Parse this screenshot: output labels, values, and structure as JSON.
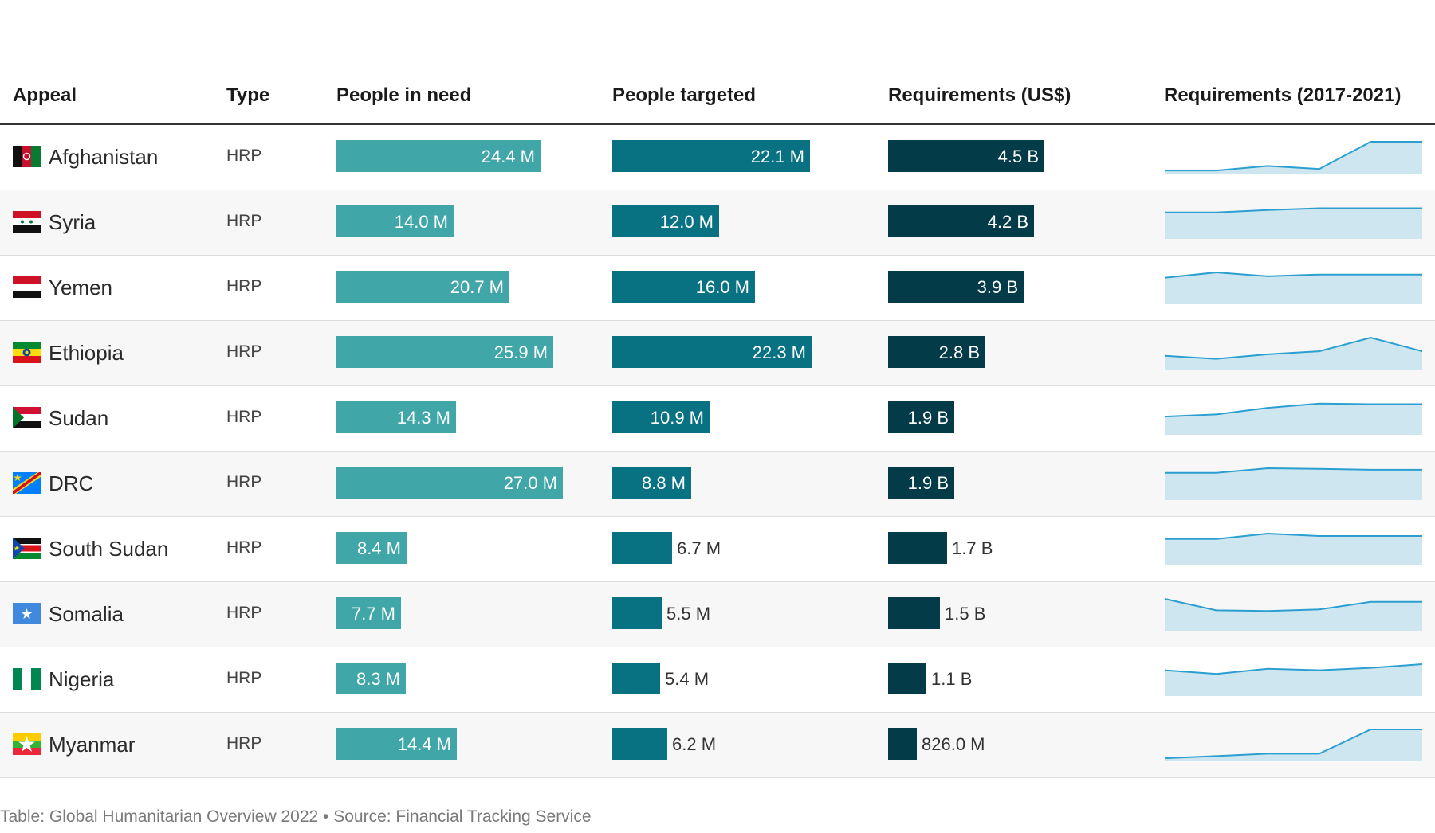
{
  "headers": {
    "appeal": "Appeal",
    "type": "Type",
    "pin": "People in need",
    "targeted": "People targeted",
    "req": "Requirements (US$)",
    "trend": "Requirements (2017-2021)"
  },
  "colors": {
    "pin": "#40a6a8",
    "targeted": "#087283",
    "req": "#033b48",
    "spark_line": "#2c9fd0",
    "spark_fill": "#cde6f0"
  },
  "rows": [
    {
      "appeal": "Afghanistan",
      "flag_icon": "afghanistan-flag-icon",
      "type": "HRP",
      "pin": 24.4,
      "pin_label": "24.4 M",
      "targeted": 22.1,
      "targeted_label": "22.1 M",
      "req": 4.5,
      "req_label": "4.5 B",
      "trend": [
        0.05,
        0.05,
        0.2,
        0.1,
        1.0,
        1.0
      ]
    },
    {
      "appeal": "Syria",
      "flag_icon": "syria-flag-icon",
      "type": "HRP",
      "pin": 14.0,
      "pin_label": "14.0 M",
      "targeted": 12.0,
      "targeted_label": "12.0 M",
      "req": 4.2,
      "req_label": "4.2 B",
      "trend": [
        0.82,
        0.82,
        0.9,
        0.96,
        0.96,
        0.96
      ]
    },
    {
      "appeal": "Yemen",
      "flag_icon": "yemen-flag-icon",
      "type": "HRP",
      "pin": 20.7,
      "pin_label": "20.7 M",
      "targeted": 16.0,
      "targeted_label": "16.0 M",
      "req": 3.9,
      "req_label": "3.9 B",
      "trend": [
        0.82,
        1.0,
        0.87,
        0.93,
        0.93,
        0.93
      ]
    },
    {
      "appeal": "Ethiopia",
      "flag_icon": "ethiopia-flag-icon",
      "type": "HRP",
      "pin": 25.9,
      "pin_label": "25.9 M",
      "targeted": 22.3,
      "targeted_label": "22.3 M",
      "req": 2.8,
      "req_label": "2.8 B",
      "trend": [
        0.4,
        0.3,
        0.45,
        0.55,
        1.0,
        0.55
      ]
    },
    {
      "appeal": "Sudan",
      "flag_icon": "sudan-flag-icon",
      "type": "HRP",
      "pin": 14.3,
      "pin_label": "14.3 M",
      "targeted": 10.9,
      "targeted_label": "10.9 M",
      "req": 1.9,
      "req_label": "1.9 B",
      "trend": [
        0.55,
        0.62,
        0.84,
        0.98,
        0.96,
        0.96
      ]
    },
    {
      "appeal": "DRC",
      "flag_icon": "drc-flag-icon",
      "type": "HRP",
      "pin": 27.0,
      "pin_label": "27.0 M",
      "targeted": 8.8,
      "targeted_label": "8.8 M",
      "req": 1.9,
      "req_label": "1.9 B",
      "trend": [
        0.85,
        0.85,
        1.0,
        0.98,
        0.95,
        0.95
      ]
    },
    {
      "appeal": "South Sudan",
      "flag_icon": "south-sudan-flag-icon",
      "type": "HRP",
      "pin": 8.4,
      "pin_label": "8.4 M",
      "targeted": 6.7,
      "targeted_label": "6.7 M",
      "req": 1.7,
      "req_label": "1.7 B",
      "trend": [
        0.82,
        0.82,
        1.0,
        0.92,
        0.92,
        0.92
      ]
    },
    {
      "appeal": "Somalia",
      "flag_icon": "somalia-flag-icon",
      "type": "HRP",
      "pin": 7.7,
      "pin_label": "7.7 M",
      "targeted": 5.5,
      "targeted_label": "5.5 M",
      "req": 1.5,
      "req_label": "1.5 B",
      "trend": [
        1.0,
        0.62,
        0.6,
        0.65,
        0.9,
        0.9
      ]
    },
    {
      "appeal": "Nigeria",
      "flag_icon": "nigeria-flag-icon",
      "type": "HRP",
      "pin": 8.3,
      "pin_label": "8.3 M",
      "targeted": 5.4,
      "targeted_label": "5.4 M",
      "req": 1.1,
      "req_label": "1.1 B",
      "trend": [
        0.8,
        0.68,
        0.85,
        0.8,
        0.88,
        1.0
      ]
    },
    {
      "appeal": "Myanmar",
      "flag_icon": "myanmar-flag-icon",
      "type": "HRP",
      "pin": 14.4,
      "pin_label": "14.4 M",
      "targeted": 6.2,
      "targeted_label": "6.2 M",
      "req": 0.826,
      "req_label": "826.0 M",
      "trend": [
        0.05,
        0.12,
        0.2,
        0.2,
        1.0,
        1.0
      ]
    }
  ],
  "footnote": "Table: Global Humanitarian Overview 2022 • Source: Financial Tracking Service",
  "chart_data": {
    "type": "table",
    "columns": [
      "Appeal",
      "Type",
      "People in need",
      "People targeted",
      "Requirements (US$)",
      "Requirements (2017-2021)"
    ],
    "units": {
      "People in need": "M",
      "People targeted": "M",
      "Requirements (US$)": "B"
    },
    "categories": [
      "Afghanistan",
      "Syria",
      "Yemen",
      "Ethiopia",
      "Sudan",
      "DRC",
      "South Sudan",
      "Somalia",
      "Nigeria",
      "Myanmar"
    ],
    "series": [
      {
        "name": "People in need",
        "values": [
          24.4,
          14.0,
          20.7,
          25.9,
          14.3,
          27.0,
          8.4,
          7.7,
          8.3,
          14.4
        ]
      },
      {
        "name": "People targeted",
        "values": [
          22.1,
          12.0,
          16.0,
          22.3,
          10.9,
          8.8,
          6.7,
          5.5,
          5.4,
          6.2
        ]
      },
      {
        "name": "Requirements (US$)",
        "values": [
          4.5,
          4.2,
          3.9,
          2.8,
          1.9,
          1.9,
          1.7,
          1.5,
          1.1,
          0.826
        ]
      }
    ]
  }
}
